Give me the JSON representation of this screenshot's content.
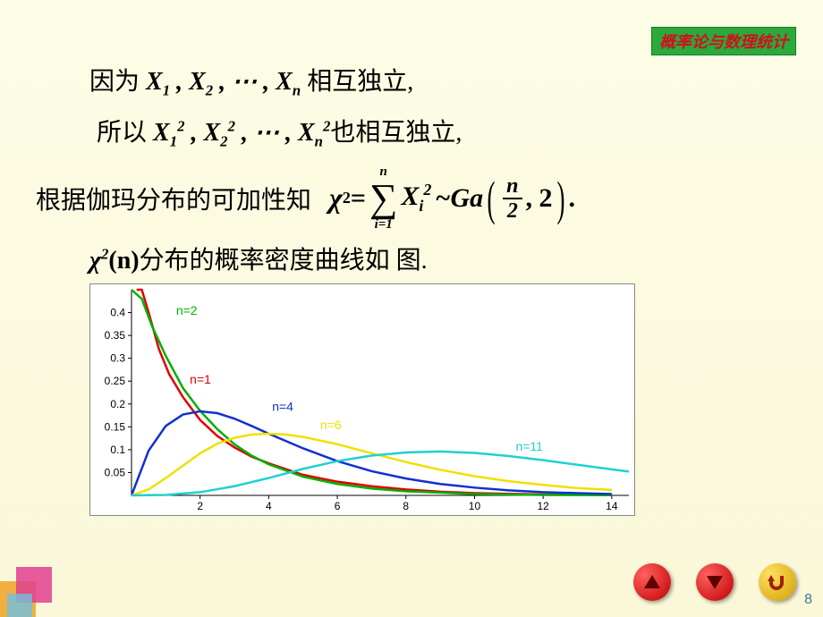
{
  "header": {
    "badge": "概率论与数理统计"
  },
  "text": {
    "line1_pre": "因为 ",
    "line1_math": "X<sub>1</sub> , X<sub>2</sub> , ⋯ , X<sub>n</sub>",
    "line1_post": " 相互独立,",
    "line2_pre": "所以 ",
    "line2_math": "X<sub>1</sub><sup>2</sup> , X<sub>2</sub><sup>2</sup> , ⋯ , X<sub>n</sub><sup>2</sup>",
    "line2_post": "也相互独立,",
    "line3": "根据伽玛分布的可加性知",
    "formula": {
      "chi": "χ",
      "sup2": "2",
      "eq": " = ",
      "sum_top": "n",
      "sum_bot": "i=1",
      "sum_sym": "∑",
      "Xi": "X",
      "i": "i",
      "tilde": "~ ",
      "Ga": "Ga",
      "n_over_2_num": "n",
      "n_over_2_den": "2",
      "comma2": ", 2",
      "dot": "."
    },
    "line4_chi": "χ",
    "line4_sup": "2",
    "line4_n": "(n)",
    "line4_rest": "分布的概率密度曲线如 图."
  },
  "chart": {
    "bg": "#ffffff",
    "xlim": [
      0,
      14.5
    ],
    "ylim": [
      0,
      0.45
    ],
    "xticks": [
      2,
      4,
      6,
      8,
      10,
      12,
      14
    ],
    "yticks": [
      0.05,
      0.1,
      0.15,
      0.2,
      0.25,
      0.3,
      0.35,
      0.4
    ],
    "axis_color": "#000000",
    "tick_fontsize": 12,
    "series": [
      {
        "label": "n=1",
        "color": "#e00000",
        "label_pos": [
          1.7,
          0.245
        ],
        "pts": [
          [
            0.15,
            0.45
          ],
          [
            0.3,
            0.45
          ],
          [
            0.5,
            0.4
          ],
          [
            0.8,
            0.32
          ],
          [
            1.1,
            0.265
          ],
          [
            1.5,
            0.215
          ],
          [
            2,
            0.165
          ],
          [
            2.5,
            0.13
          ],
          [
            3,
            0.105
          ],
          [
            3.5,
            0.085
          ],
          [
            4,
            0.07
          ],
          [
            5,
            0.045
          ],
          [
            6,
            0.03
          ],
          [
            7,
            0.02
          ],
          [
            8,
            0.013
          ],
          [
            9,
            0.008
          ],
          [
            10,
            0.005
          ],
          [
            12,
            0.002
          ],
          [
            14,
            0.001
          ]
        ]
      },
      {
        "label": "n=2",
        "color": "#00b000",
        "label_pos": [
          1.3,
          0.395
        ],
        "pts": [
          [
            0,
            0.45
          ],
          [
            0.3,
            0.43
          ],
          [
            0.6,
            0.37
          ],
          [
            1,
            0.305
          ],
          [
            1.5,
            0.235
          ],
          [
            2,
            0.185
          ],
          [
            2.5,
            0.145
          ],
          [
            3,
            0.112
          ],
          [
            3.5,
            0.087
          ],
          [
            4,
            0.068
          ],
          [
            5,
            0.041
          ],
          [
            6,
            0.025
          ],
          [
            7,
            0.015
          ],
          [
            8,
            0.009
          ],
          [
            9,
            0.006
          ],
          [
            10,
            0.003
          ],
          [
            12,
            0.001
          ],
          [
            14,
            0.0005
          ]
        ]
      },
      {
        "label": "n=4",
        "color": "#1030d0",
        "label_pos": [
          4.1,
          0.185
        ],
        "pts": [
          [
            0,
            0
          ],
          [
            0.5,
            0.098
          ],
          [
            1,
            0.152
          ],
          [
            1.5,
            0.177
          ],
          [
            2,
            0.184
          ],
          [
            2.5,
            0.18
          ],
          [
            3,
            0.168
          ],
          [
            3.5,
            0.152
          ],
          [
            4,
            0.135
          ],
          [
            5,
            0.103
          ],
          [
            6,
            0.075
          ],
          [
            7,
            0.053
          ],
          [
            8,
            0.037
          ],
          [
            9,
            0.025
          ],
          [
            10,
            0.017
          ],
          [
            11,
            0.011
          ],
          [
            12,
            0.007
          ],
          [
            13,
            0.005
          ],
          [
            14,
            0.003
          ]
        ]
      },
      {
        "label": "n=6",
        "color": "#f0e000",
        "label_pos": [
          5.5,
          0.145
        ],
        "pts": [
          [
            0,
            0
          ],
          [
            0.5,
            0.013
          ],
          [
            1,
            0.038
          ],
          [
            1.5,
            0.065
          ],
          [
            2,
            0.092
          ],
          [
            2.5,
            0.113
          ],
          [
            3,
            0.126
          ],
          [
            3.5,
            0.133
          ],
          [
            4,
            0.135
          ],
          [
            4.5,
            0.133
          ],
          [
            5,
            0.128
          ],
          [
            6,
            0.112
          ],
          [
            7,
            0.092
          ],
          [
            8,
            0.073
          ],
          [
            9,
            0.056
          ],
          [
            10,
            0.042
          ],
          [
            11,
            0.031
          ],
          [
            12,
            0.023
          ],
          [
            13,
            0.016
          ],
          [
            14,
            0.012
          ]
        ]
      },
      {
        "label": "n=11",
        "color": "#20d0d0",
        "label_pos": [
          11.2,
          0.098
        ],
        "pts": [
          [
            0,
            0
          ],
          [
            1,
            0.001
          ],
          [
            2,
            0.007
          ],
          [
            3,
            0.02
          ],
          [
            4,
            0.038
          ],
          [
            5,
            0.058
          ],
          [
            6,
            0.075
          ],
          [
            7,
            0.087
          ],
          [
            8,
            0.094
          ],
          [
            9,
            0.096
          ],
          [
            10,
            0.093
          ],
          [
            11,
            0.086
          ],
          [
            12,
            0.077
          ],
          [
            13,
            0.067
          ],
          [
            14,
            0.057
          ],
          [
            14.5,
            0.052
          ]
        ]
      }
    ]
  },
  "nav": {
    "up": "▲",
    "down": "▼",
    "back": "↶"
  },
  "page": "8",
  "deco": {
    "c1": "#f0b040",
    "c2": "#e04090",
    "c3": "#70c0e0"
  }
}
